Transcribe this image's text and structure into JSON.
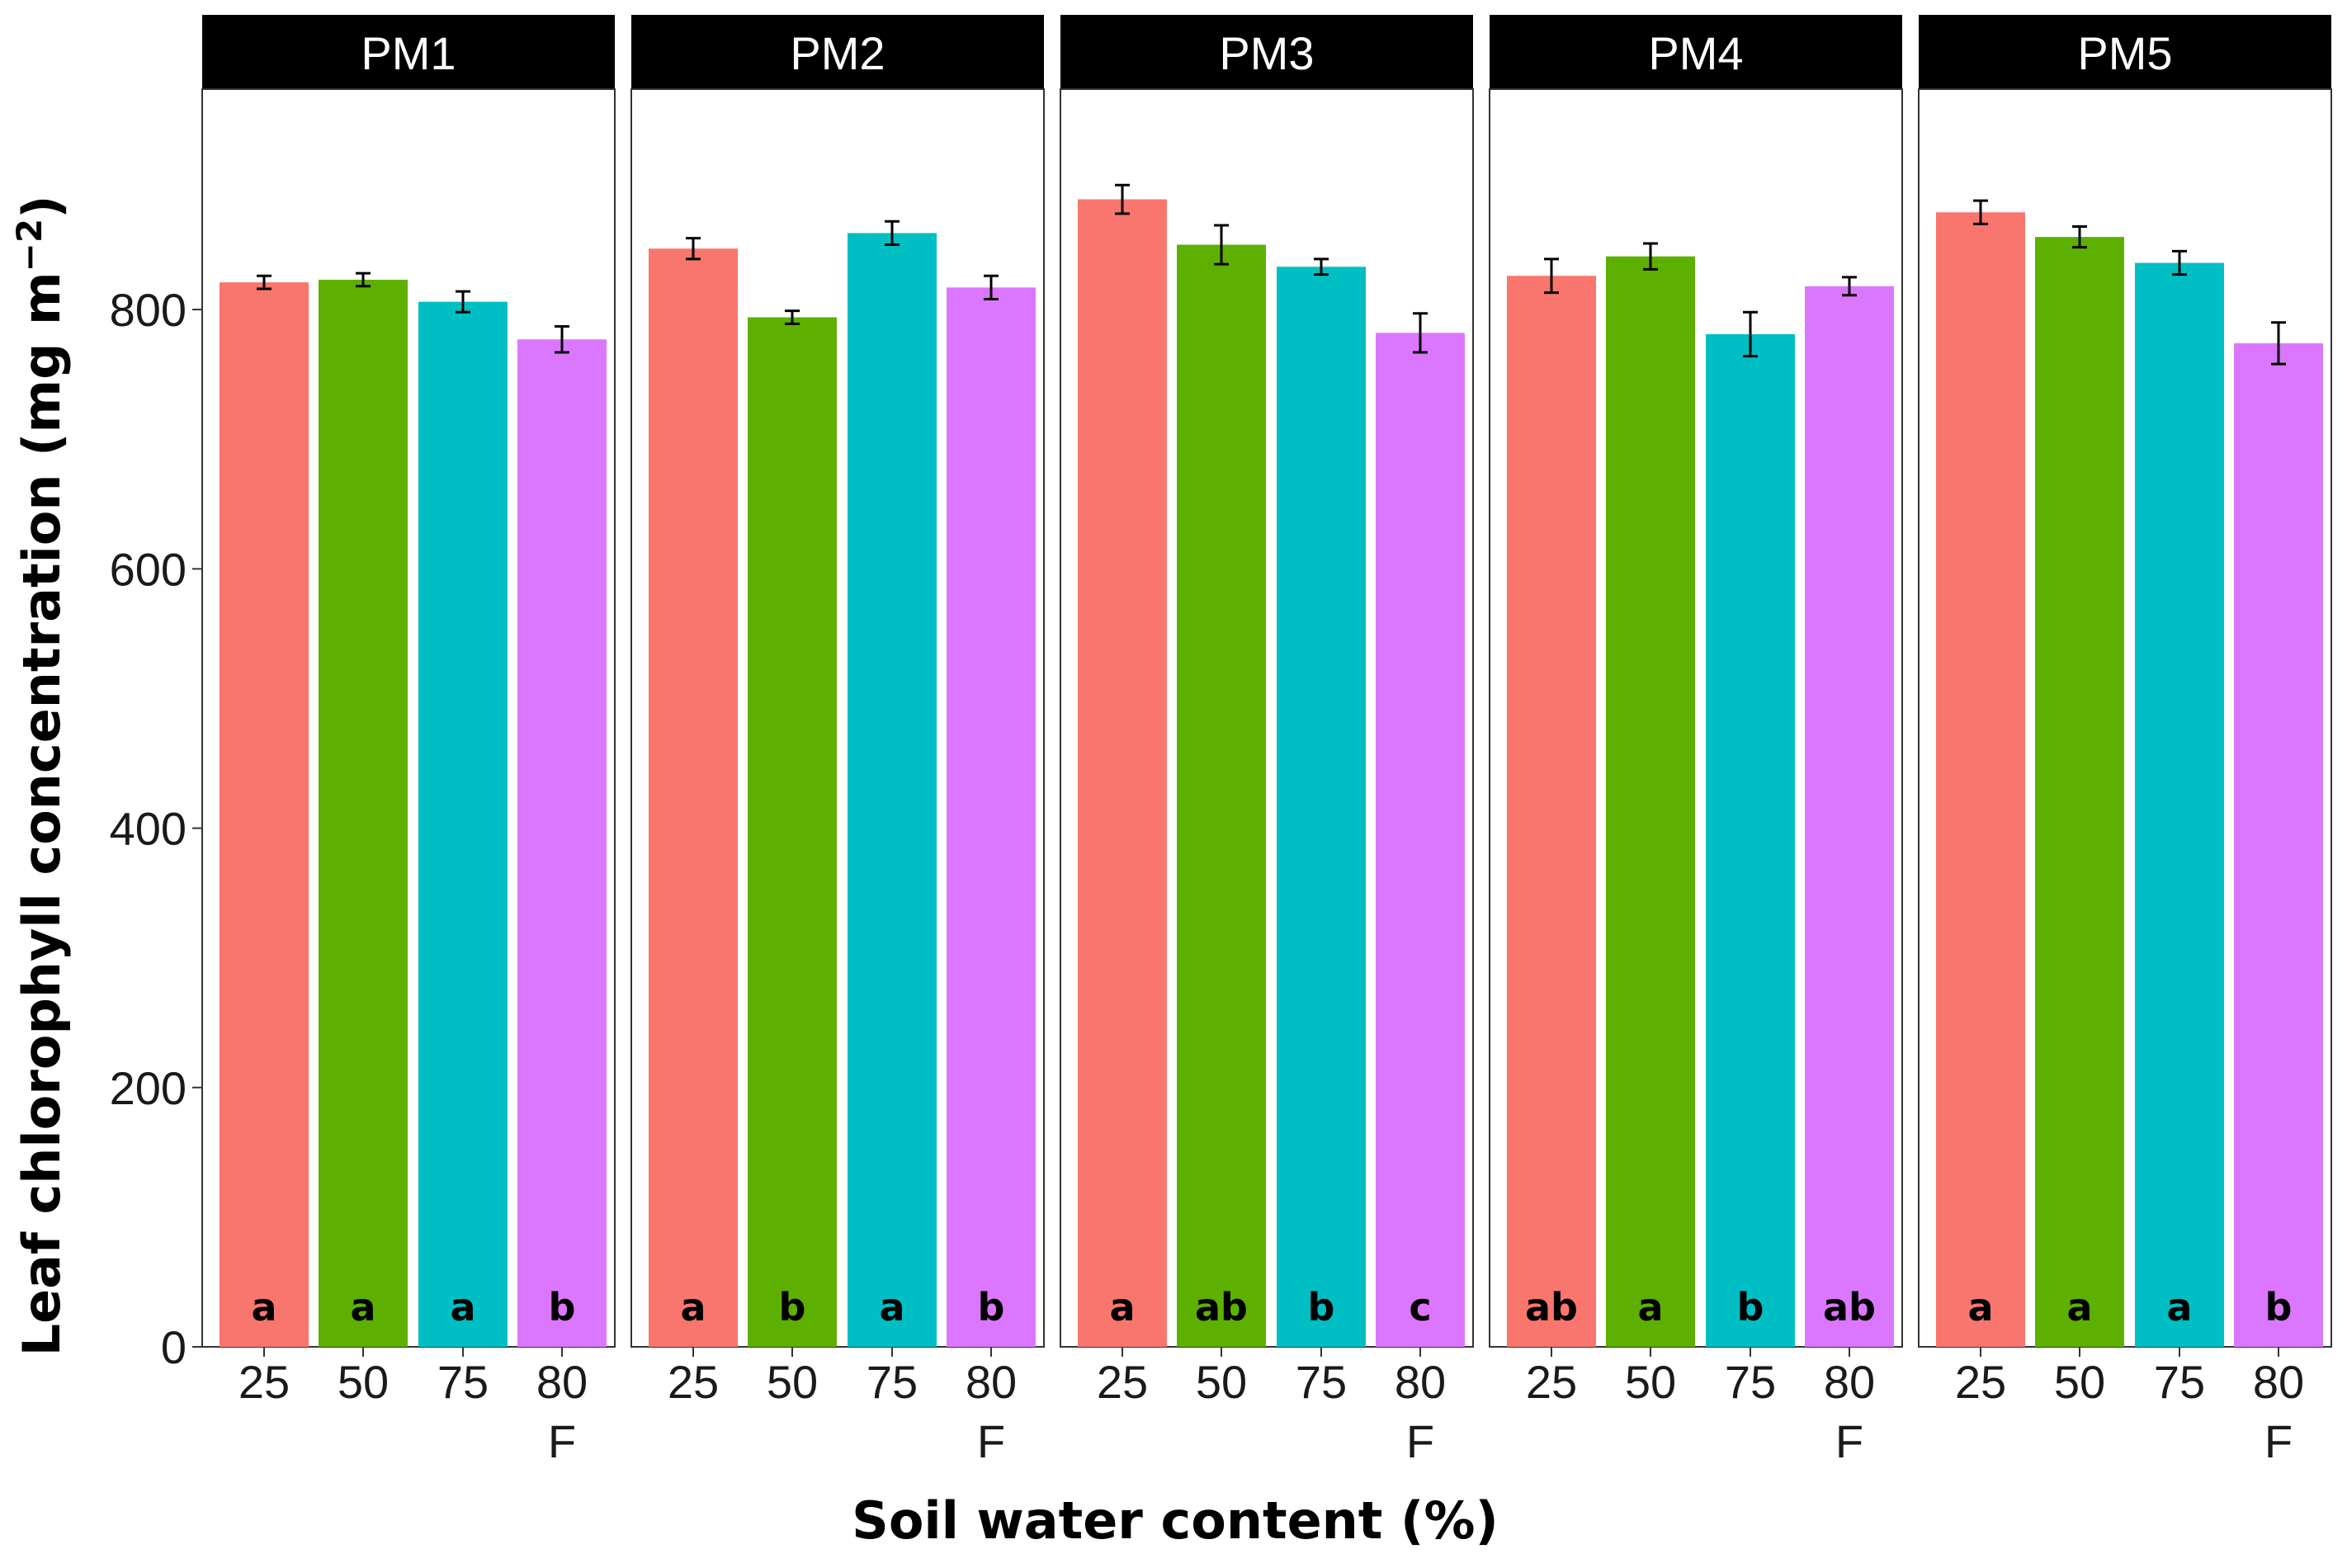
{
  "chart_data": {
    "type": "bar",
    "xlabel": "Soil water content (%)",
    "ylabel_main": "Leaf chlorophyll concentration (mg m",
    "ylabel_sup": "−2",
    "ylabel_end": ")",
    "ylim": [
      0,
      970
    ],
    "yticks": [
      0,
      200,
      400,
      600,
      800
    ],
    "categories": [
      {
        "lines": [
          "25"
        ]
      },
      {
        "lines": [
          "50"
        ]
      },
      {
        "lines": [
          "75"
        ]
      },
      {
        "lines": [
          "80",
          "F"
        ]
      }
    ],
    "colors": [
      "#F8766D",
      "#5EB000",
      "#00BFC4",
      "#DB77FF"
    ],
    "panels": [
      {
        "title": "PM1",
        "values": [
          821,
          823,
          806,
          777
        ],
        "errors": [
          5,
          5,
          8,
          10
        ],
        "letters": [
          "a",
          "a",
          "a",
          "b"
        ]
      },
      {
        "title": "PM2",
        "values": [
          847,
          794,
          859,
          817
        ],
        "errors": [
          8,
          5,
          9,
          9
        ],
        "letters": [
          "a",
          "b",
          "a",
          "b"
        ]
      },
      {
        "title": "PM3",
        "values": [
          885,
          850,
          833,
          782
        ],
        "errors": [
          11,
          15,
          6,
          15
        ],
        "letters": [
          "a",
          "ab",
          "b",
          "c"
        ]
      },
      {
        "title": "PM4",
        "values": [
          826,
          841,
          781,
          818
        ],
        "errors": [
          13,
          10,
          17,
          7
        ],
        "letters": [
          "ab",
          "a",
          "b",
          "ab"
        ]
      },
      {
        "title": "PM5",
        "values": [
          875,
          856,
          836,
          774
        ],
        "errors": [
          9,
          8,
          9,
          16
        ],
        "letters": [
          "a",
          "a",
          "a",
          "b"
        ]
      }
    ]
  }
}
